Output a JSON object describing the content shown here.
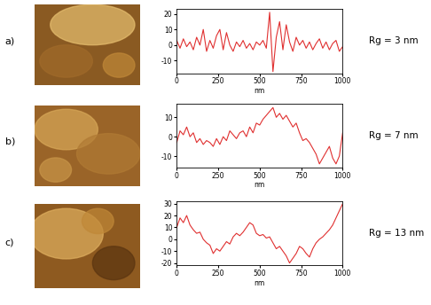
{
  "chart_data": [
    {
      "type": "line",
      "panel": "a)",
      "annotation": "Rg = 3 nm",
      "xlabel": "nm",
      "color": "#e03030",
      "x": [
        0,
        20,
        40,
        60,
        80,
        100,
        120,
        140,
        160,
        180,
        200,
        220,
        240,
        260,
        280,
        300,
        320,
        340,
        360,
        380,
        400,
        420,
        440,
        460,
        480,
        500,
        520,
        540,
        560,
        580,
        600,
        620,
        640,
        660,
        680,
        700,
        720,
        740,
        760,
        780,
        800,
        820,
        840,
        860,
        880,
        900,
        920,
        940,
        960,
        980,
        1000
      ],
      "values": [
        3,
        -2,
        4,
        -1,
        2,
        -3,
        5,
        0,
        10,
        -4,
        3,
        -2,
        6,
        10,
        -3,
        8,
        0,
        -4,
        2,
        -1,
        3,
        -2,
        1,
        -3,
        2,
        0,
        3,
        -2,
        21,
        -17,
        5,
        15,
        -3,
        13,
        2,
        -4,
        5,
        0,
        3,
        -2,
        2,
        -3,
        1,
        4,
        -2,
        2,
        -3,
        1,
        3,
        -4,
        -1
      ],
      "xlim": [
        0,
        1000
      ],
      "xticks": [
        0,
        250,
        500,
        750,
        1000
      ],
      "ylim": [
        -18,
        23
      ],
      "yticks": [
        -10,
        0,
        10,
        20
      ],
      "grid": false
    },
    {
      "type": "line",
      "panel": "b)",
      "annotation": "Rg = 7 nm",
      "xlabel": "nm",
      "color": "#e03030",
      "x": [
        0,
        20,
        40,
        60,
        80,
        100,
        120,
        140,
        160,
        180,
        200,
        220,
        240,
        260,
        280,
        300,
        320,
        340,
        360,
        380,
        400,
        420,
        440,
        460,
        480,
        500,
        520,
        540,
        560,
        580,
        600,
        620,
        640,
        660,
        680,
        700,
        720,
        740,
        760,
        780,
        800,
        820,
        840,
        860,
        880,
        900,
        920,
        940,
        960,
        980,
        1000
      ],
      "values": [
        -3,
        3,
        1,
        5,
        0,
        2,
        -3,
        -1,
        -4,
        -2,
        -3,
        -5,
        -1,
        -4,
        0,
        -2,
        3,
        1,
        -1,
        2,
        3,
        0,
        5,
        2,
        7,
        6,
        9,
        11,
        13,
        15,
        10,
        12,
        9,
        11,
        8,
        5,
        7,
        2,
        -2,
        -1,
        -3,
        -6,
        -9,
        -14,
        -11,
        -8,
        -5,
        -11,
        -14,
        -10,
        2
      ],
      "xlim": [
        0,
        1000
      ],
      "xticks": [
        0,
        250,
        500,
        750,
        1000
      ],
      "ylim": [
        -16,
        17
      ],
      "yticks": [
        -10,
        0,
        10
      ],
      "grid": false
    },
    {
      "type": "line",
      "panel": "c)",
      "annotation": "Rg = 13 nm",
      "xlabel": "nm",
      "color": "#e03030",
      "x": [
        0,
        20,
        40,
        60,
        80,
        100,
        120,
        140,
        160,
        180,
        200,
        220,
        240,
        260,
        280,
        300,
        320,
        340,
        360,
        380,
        400,
        420,
        440,
        460,
        480,
        500,
        520,
        540,
        560,
        580,
        600,
        620,
        640,
        660,
        680,
        700,
        720,
        740,
        760,
        780,
        800,
        820,
        840,
        860,
        880,
        900,
        920,
        940,
        960,
        980,
        1000
      ],
      "values": [
        10,
        18,
        14,
        20,
        12,
        8,
        5,
        6,
        0,
        -3,
        -5,
        -12,
        -8,
        -10,
        -6,
        -2,
        -4,
        2,
        5,
        3,
        6,
        10,
        14,
        12,
        5,
        3,
        4,
        1,
        2,
        -3,
        -8,
        -6,
        -10,
        -14,
        -20,
        -16,
        -12,
        -6,
        -8,
        -12,
        -15,
        -8,
        -3,
        0,
        2,
        5,
        8,
        12,
        18,
        24,
        30
      ],
      "xlim": [
        0,
        1000
      ],
      "xticks": [
        0,
        250,
        500,
        750,
        1000
      ],
      "ylim": [
        -22,
        32
      ],
      "yticks": [
        -20,
        -10,
        0,
        10,
        20,
        30
      ],
      "grid": false
    }
  ]
}
